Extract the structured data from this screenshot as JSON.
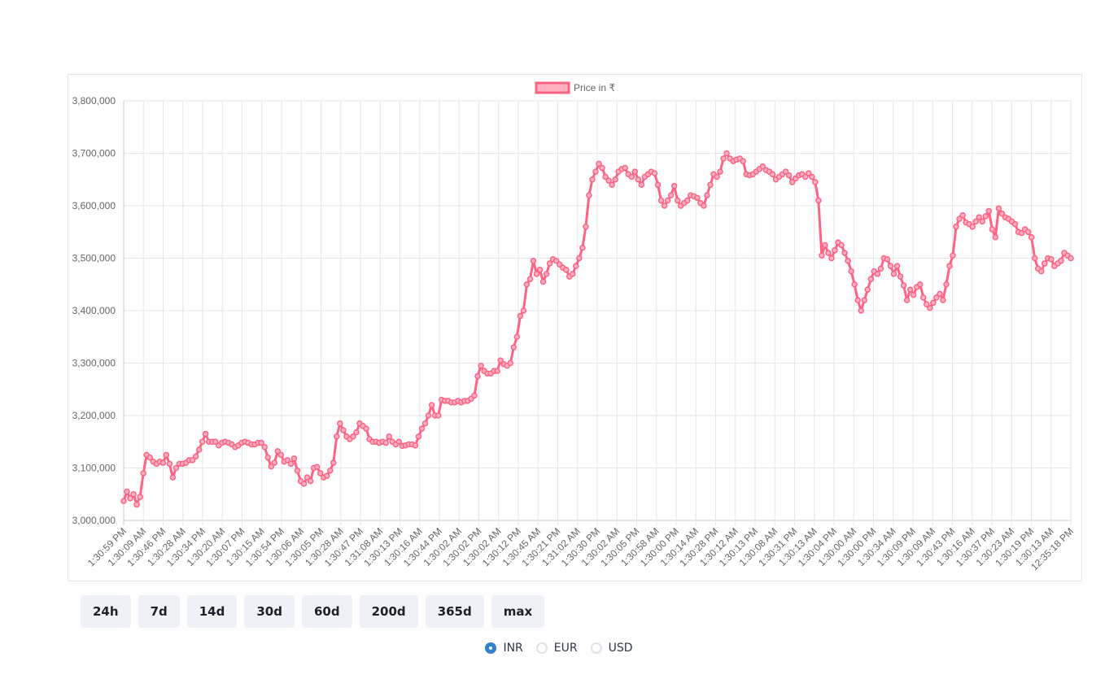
{
  "chart_data": {
    "type": "line",
    "series": [
      {
        "name": "Price in ₹",
        "color": "#ff6384",
        "fill": "#ffb1c1"
      }
    ],
    "ylim": [
      3000000,
      3800000
    ],
    "yticks": [
      "3,000,000",
      "3,100,000",
      "3,200,000",
      "3,300,000",
      "3,400,000",
      "3,500,000",
      "3,600,000",
      "3,700,000",
      "3,800,000"
    ],
    "x_tick_labels": [
      "1:30:59 PM",
      "1:30:09 AM",
      "1:30:46 PM",
      "1:30:28 AM",
      "1:30:34 PM",
      "1:30:20 AM",
      "1:30:07 PM",
      "1:30:15 AM",
      "1:30:54 PM",
      "1:30:06 AM",
      "1:30:05 PM",
      "1:30:28 AM",
      "1:30:47 PM",
      "1:31:08 AM",
      "1:30:13 PM",
      "1:30:16 AM",
      "1:30:44 PM",
      "1:30:02 AM",
      "1:30:02 PM",
      "1:30:02 AM",
      "1:30:12 PM",
      "1:30:45 AM",
      "1:30:21 PM",
      "1:31:02 AM",
      "1:30:30 PM",
      "1:30:02 AM",
      "1:30:05 PM",
      "1:30:58 AM",
      "1:30:00 PM",
      "1:30:14 AM",
      "1:30:28 PM",
      "1:30:12 AM",
      "1:30:13 PM",
      "1:30:08 AM",
      "1:30:31 PM",
      "1:30:13 AM",
      "1:30:04 PM",
      "1:30:00 AM",
      "1:30:00 PM",
      "1:30:34 AM",
      "1:30:09 PM",
      "1:30:09 AM",
      "1:30:43 PM",
      "1:30:16 AM",
      "1:30:37 PM",
      "1:30:23 AM",
      "1:30:19 PM",
      "1:30:13 AM",
      "12:35:18 PM"
    ],
    "values": [
      3037000,
      3055000,
      3042000,
      3050000,
      3030000,
      3045000,
      3090000,
      3125000,
      3120000,
      3112000,
      3108000,
      3112000,
      3110000,
      3125000,
      3108000,
      3082000,
      3100000,
      3108000,
      3108000,
      3110000,
      3115000,
      3115000,
      3122000,
      3135000,
      3150000,
      3165000,
      3150000,
      3150000,
      3150000,
      3143000,
      3148000,
      3150000,
      3148000,
      3145000,
      3140000,
      3143000,
      3148000,
      3150000,
      3148000,
      3145000,
      3145000,
      3148000,
      3148000,
      3140000,
      3120000,
      3103000,
      3110000,
      3132000,
      3125000,
      3112000,
      3115000,
      3108000,
      3118000,
      3095000,
      3075000,
      3070000,
      3082000,
      3075000,
      3100000,
      3102000,
      3090000,
      3082000,
      3085000,
      3095000,
      3110000,
      3160000,
      3185000,
      3172000,
      3160000,
      3155000,
      3160000,
      3168000,
      3185000,
      3180000,
      3175000,
      3155000,
      3150000,
      3150000,
      3148000,
      3150000,
      3148000,
      3160000,
      3150000,
      3145000,
      3150000,
      3142000,
      3143000,
      3145000,
      3145000,
      3143000,
      3160000,
      3175000,
      3185000,
      3200000,
      3220000,
      3200000,
      3200000,
      3230000,
      3228000,
      3228000,
      3225000,
      3225000,
      3228000,
      3225000,
      3228000,
      3228000,
      3232000,
      3238000,
      3275000,
      3295000,
      3285000,
      3280000,
      3280000,
      3285000,
      3285000,
      3305000,
      3298000,
      3295000,
      3300000,
      3330000,
      3350000,
      3390000,
      3400000,
      3450000,
      3460000,
      3495000,
      3470000,
      3478000,
      3455000,
      3470000,
      3490000,
      3498000,
      3495000,
      3488000,
      3482000,
      3478000,
      3465000,
      3470000,
      3485000,
      3500000,
      3520000,
      3560000,
      3620000,
      3650000,
      3665000,
      3680000,
      3672000,
      3655000,
      3648000,
      3640000,
      3650000,
      3665000,
      3670000,
      3672000,
      3660000,
      3655000,
      3665000,
      3650000,
      3640000,
      3655000,
      3660000,
      3665000,
      3662000,
      3640000,
      3610000,
      3600000,
      3610000,
      3620000,
      3638000,
      3610000,
      3600000,
      3605000,
      3610000,
      3620000,
      3618000,
      3615000,
      3605000,
      3600000,
      3620000,
      3640000,
      3660000,
      3655000,
      3665000,
      3690000,
      3700000,
      3690000,
      3685000,
      3688000,
      3690000,
      3685000,
      3660000,
      3658000,
      3660000,
      3665000,
      3670000,
      3675000,
      3668000,
      3665000,
      3660000,
      3650000,
      3655000,
      3660000,
      3665000,
      3658000,
      3645000,
      3652000,
      3658000,
      3660000,
      3655000,
      3662000,
      3655000,
      3645000,
      3610000,
      3505000,
      3525000,
      3510000,
      3500000,
      3515000,
      3530000,
      3525000,
      3510000,
      3495000,
      3475000,
      3450000,
      3420000,
      3400000,
      3420000,
      3440000,
      3460000,
      3475000,
      3470000,
      3480000,
      3500000,
      3498000,
      3485000,
      3470000,
      3485000,
      3465000,
      3448000,
      3420000,
      3440000,
      3430000,
      3445000,
      3450000,
      3425000,
      3412000,
      3405000,
      3415000,
      3425000,
      3432000,
      3420000,
      3450000,
      3485000,
      3505000,
      3560000,
      3575000,
      3582000,
      3568000,
      3565000,
      3560000,
      3570000,
      3578000,
      3570000,
      3580000,
      3590000,
      3555000,
      3540000,
      3595000,
      3585000,
      3578000,
      3575000,
      3570000,
      3565000,
      3550000,
      3548000,
      3555000,
      3550000,
      3540000,
      3500000,
      3480000,
      3475000,
      3490000,
      3500000,
      3498000,
      3485000,
      3490000,
      3495000,
      3510000,
      3505000,
      3500000
    ]
  },
  "range_buttons": [
    "24h",
    "7d",
    "14d",
    "30d",
    "60d",
    "200d",
    "365d",
    "max"
  ],
  "currencies": [
    {
      "label": "INR",
      "checked": true
    },
    {
      "label": "EUR",
      "checked": false
    },
    {
      "label": "USD",
      "checked": false
    }
  ]
}
